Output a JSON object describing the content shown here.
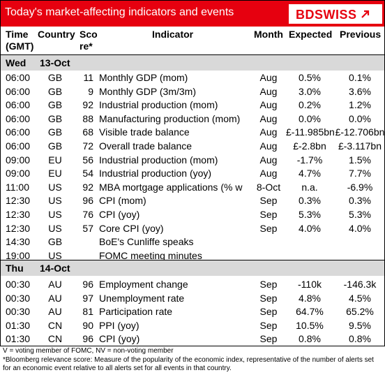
{
  "header": {
    "title": "Today's market-affecting indicators and events",
    "logo_text": "BDSWISS",
    "logo_bd": "BD",
    "logo_swiss": "SWISS"
  },
  "columns": {
    "time": "Time (GMT)",
    "time_l1": "Time",
    "time_l2": "(GMT)",
    "country": "Country",
    "score_l1": "Sco",
    "score_l2": "re*",
    "indicator": "Indicator",
    "month": "Month",
    "expected": "Expected",
    "previous": "Previous"
  },
  "days": [
    {
      "weekday": "Wed",
      "date": "13-Oct"
    },
    {
      "weekday": "Thu",
      "date": "14-Oct"
    }
  ],
  "rows_day1": [
    {
      "time": "06:00",
      "country": "GB",
      "score": "11",
      "indicator": "Monthly GDP (mom)",
      "month": "Aug",
      "expected": "0.5%",
      "previous": "0.1%"
    },
    {
      "time": "06:00",
      "country": "GB",
      "score": "9",
      "indicator": "Monthly GDP (3m/3m)",
      "month": "Aug",
      "expected": "3.0%",
      "previous": "3.6%"
    },
    {
      "time": "06:00",
      "country": "GB",
      "score": "92",
      "indicator": "Industrial production (mom)",
      "month": "Aug",
      "expected": "0.2%",
      "previous": "1.2%"
    },
    {
      "time": "06:00",
      "country": "GB",
      "score": "88",
      "indicator": "Manufacturing production (mom)",
      "month": "Aug",
      "expected": "0.0%",
      "previous": "0.0%"
    },
    {
      "time": "06:00",
      "country": "GB",
      "score": "68",
      "indicator": "Visible trade balance",
      "month": "Aug",
      "expected": "£-11.985bn",
      "previous": "£-12.706bn"
    },
    {
      "time": "06:00",
      "country": "GB",
      "score": "72",
      "indicator": "Overall trade balance",
      "month": "Aug",
      "expected": "£-2.8bn",
      "previous": "£-3.117bn"
    },
    {
      "time": "09:00",
      "country": "EU",
      "score": "56",
      "indicator": "Industrial production (mom)",
      "month": "Aug",
      "expected": "-1.7%",
      "previous": "1.5%"
    },
    {
      "time": "09:00",
      "country": "EU",
      "score": "54",
      "indicator": "Industrial production (yoy)",
      "month": "Aug",
      "expected": "4.7%",
      "previous": "7.7%"
    },
    {
      "time": "11:00",
      "country": "US",
      "score": "92",
      "indicator": "MBA mortgage applications (% w",
      "month": "8-Oct",
      "expected": "n.a.",
      "previous": "-6.9%"
    },
    {
      "time": "12:30",
      "country": "US",
      "score": "96",
      "indicator": "CPI (mom)",
      "month": "Sep",
      "expected": "0.3%",
      "previous": "0.3%"
    },
    {
      "time": "12:30",
      "country": "US",
      "score": "76",
      "indicator": "CPI (yoy)",
      "month": "Sep",
      "expected": "5.3%",
      "previous": "5.3%"
    },
    {
      "time": "12:30",
      "country": "US",
      "score": "57",
      "indicator": "Core CPI (yoy)",
      "month": "Sep",
      "expected": "4.0%",
      "previous": "4.0%"
    },
    {
      "time": "14:30",
      "country": "GB",
      "score": "",
      "indicator": "BoE's Cunliffe speaks",
      "month": "",
      "expected": "",
      "previous": ""
    },
    {
      "time": "19:00",
      "country": "US",
      "score": "",
      "indicator": "FOMC meeting minutes",
      "month": "",
      "expected": "",
      "previous": ""
    }
  ],
  "rows_day2": [
    {
      "time": "00:30",
      "country": "AU",
      "score": "96",
      "indicator": "Employment change",
      "month": "Sep",
      "expected": "-110k",
      "previous": "-146.3k"
    },
    {
      "time": "00:30",
      "country": "AU",
      "score": "97",
      "indicator": "Unemployment rate",
      "month": "Sep",
      "expected": "4.8%",
      "previous": "4.5%"
    },
    {
      "time": "00:30",
      "country": "AU",
      "score": "81",
      "indicator": "Participation rate",
      "month": "Sep",
      "expected": "64.7%",
      "previous": "65.2%"
    },
    {
      "time": "01:30",
      "country": "CN",
      "score": "90",
      "indicator": "PPI (yoy)",
      "month": "Sep",
      "expected": "10.5%",
      "previous": "9.5%"
    },
    {
      "time": "01:30",
      "country": "CN",
      "score": "96",
      "indicator": "CPI (yoy)",
      "month": "Sep",
      "expected": "0.8%",
      "previous": "0.8%"
    }
  ],
  "footnotes": {
    "line1": "V = voting member of FOMC, NV = non-voting member",
    "line2": "*Bloomberg relevance score:  Measure of the popularity of the economic index, representative of the number of alerts set for an economic event relative to all alerts set for all events in that country."
  },
  "colors": {
    "brand_red": "#e6000f",
    "day_bar": "#d9d9d9"
  }
}
